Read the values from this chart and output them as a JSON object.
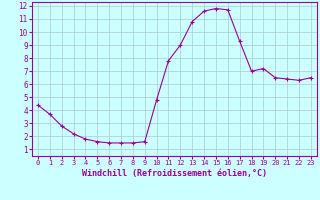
{
  "x": [
    0,
    1,
    2,
    3,
    4,
    5,
    6,
    7,
    8,
    9,
    10,
    11,
    12,
    13,
    14,
    15,
    16,
    17,
    18,
    19,
    20,
    21,
    22,
    23
  ],
  "y": [
    4.4,
    3.7,
    2.8,
    2.2,
    1.8,
    1.6,
    1.5,
    1.5,
    1.5,
    1.6,
    4.8,
    7.8,
    9.0,
    10.8,
    11.6,
    11.8,
    11.7,
    9.3,
    7.0,
    7.2,
    6.5,
    6.4,
    6.3,
    6.5
  ],
  "line_color": "#990099",
  "marker": "+",
  "marker_size": 3,
  "bg_color": "#ccffff",
  "grid_color": "#aacccc",
  "xlabel": "Windchill (Refroidissement éolien,°C)",
  "xlabel_color": "#990099",
  "tick_color": "#990099",
  "ylim": [
    1,
    12
  ],
  "xlim": [
    0,
    23
  ],
  "yticks": [
    1,
    2,
    3,
    4,
    5,
    6,
    7,
    8,
    9,
    10,
    11,
    12
  ],
  "xticks": [
    0,
    1,
    2,
    3,
    4,
    5,
    6,
    7,
    8,
    9,
    10,
    11,
    12,
    13,
    14,
    15,
    16,
    17,
    18,
    19,
    20,
    21,
    22,
    23
  ],
  "spine_color": "#990099"
}
